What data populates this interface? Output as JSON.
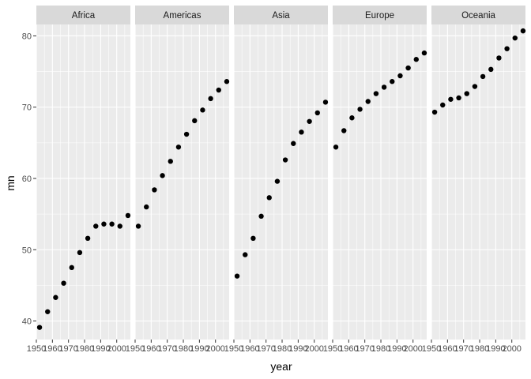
{
  "chart_data": {
    "type": "scatter",
    "facets": [
      "Africa",
      "Americas",
      "Asia",
      "Europe",
      "Oceania"
    ],
    "xlabel": "year",
    "ylabel": "mn",
    "x": [
      1952,
      1957,
      1962,
      1967,
      1972,
      1977,
      1982,
      1987,
      1992,
      1997,
      2002,
      2007
    ],
    "xlim": [
      1950,
      2008.5
    ],
    "ylim": [
      37.4,
      81.6
    ],
    "xticks": [
      1950,
      1960,
      1970,
      1980,
      1990,
      2000
    ],
    "xtick_labels": [
      "1950",
      "1960",
      "1970",
      "1980",
      "1990",
      "2000"
    ],
    "yticks": [
      40,
      50,
      60,
      70,
      80
    ],
    "ytick_labels": [
      "40",
      "50",
      "60",
      "70",
      "80"
    ],
    "grid": true,
    "series": [
      {
        "facet": "Africa",
        "values": [
          39.1,
          41.3,
          43.3,
          45.3,
          47.5,
          49.6,
          51.6,
          53.3,
          53.6,
          53.6,
          53.3,
          54.8
        ]
      },
      {
        "facet": "Americas",
        "values": [
          53.3,
          56.0,
          58.4,
          60.4,
          62.4,
          64.4,
          66.2,
          68.1,
          69.6,
          71.2,
          72.4,
          73.6
        ]
      },
      {
        "facet": "Asia",
        "values": [
          46.3,
          49.3,
          51.6,
          54.7,
          57.3,
          59.6,
          62.6,
          64.9,
          66.5,
          68.0,
          69.2,
          70.7
        ]
      },
      {
        "facet": "Europe",
        "values": [
          64.4,
          66.7,
          68.5,
          69.7,
          70.8,
          71.9,
          72.8,
          73.6,
          74.4,
          75.5,
          76.7,
          77.6
        ]
      },
      {
        "facet": "Oceania",
        "values": [
          69.3,
          70.3,
          71.1,
          71.3,
          71.9,
          72.9,
          74.3,
          75.3,
          76.9,
          78.2,
          79.7,
          80.7
        ]
      }
    ]
  }
}
